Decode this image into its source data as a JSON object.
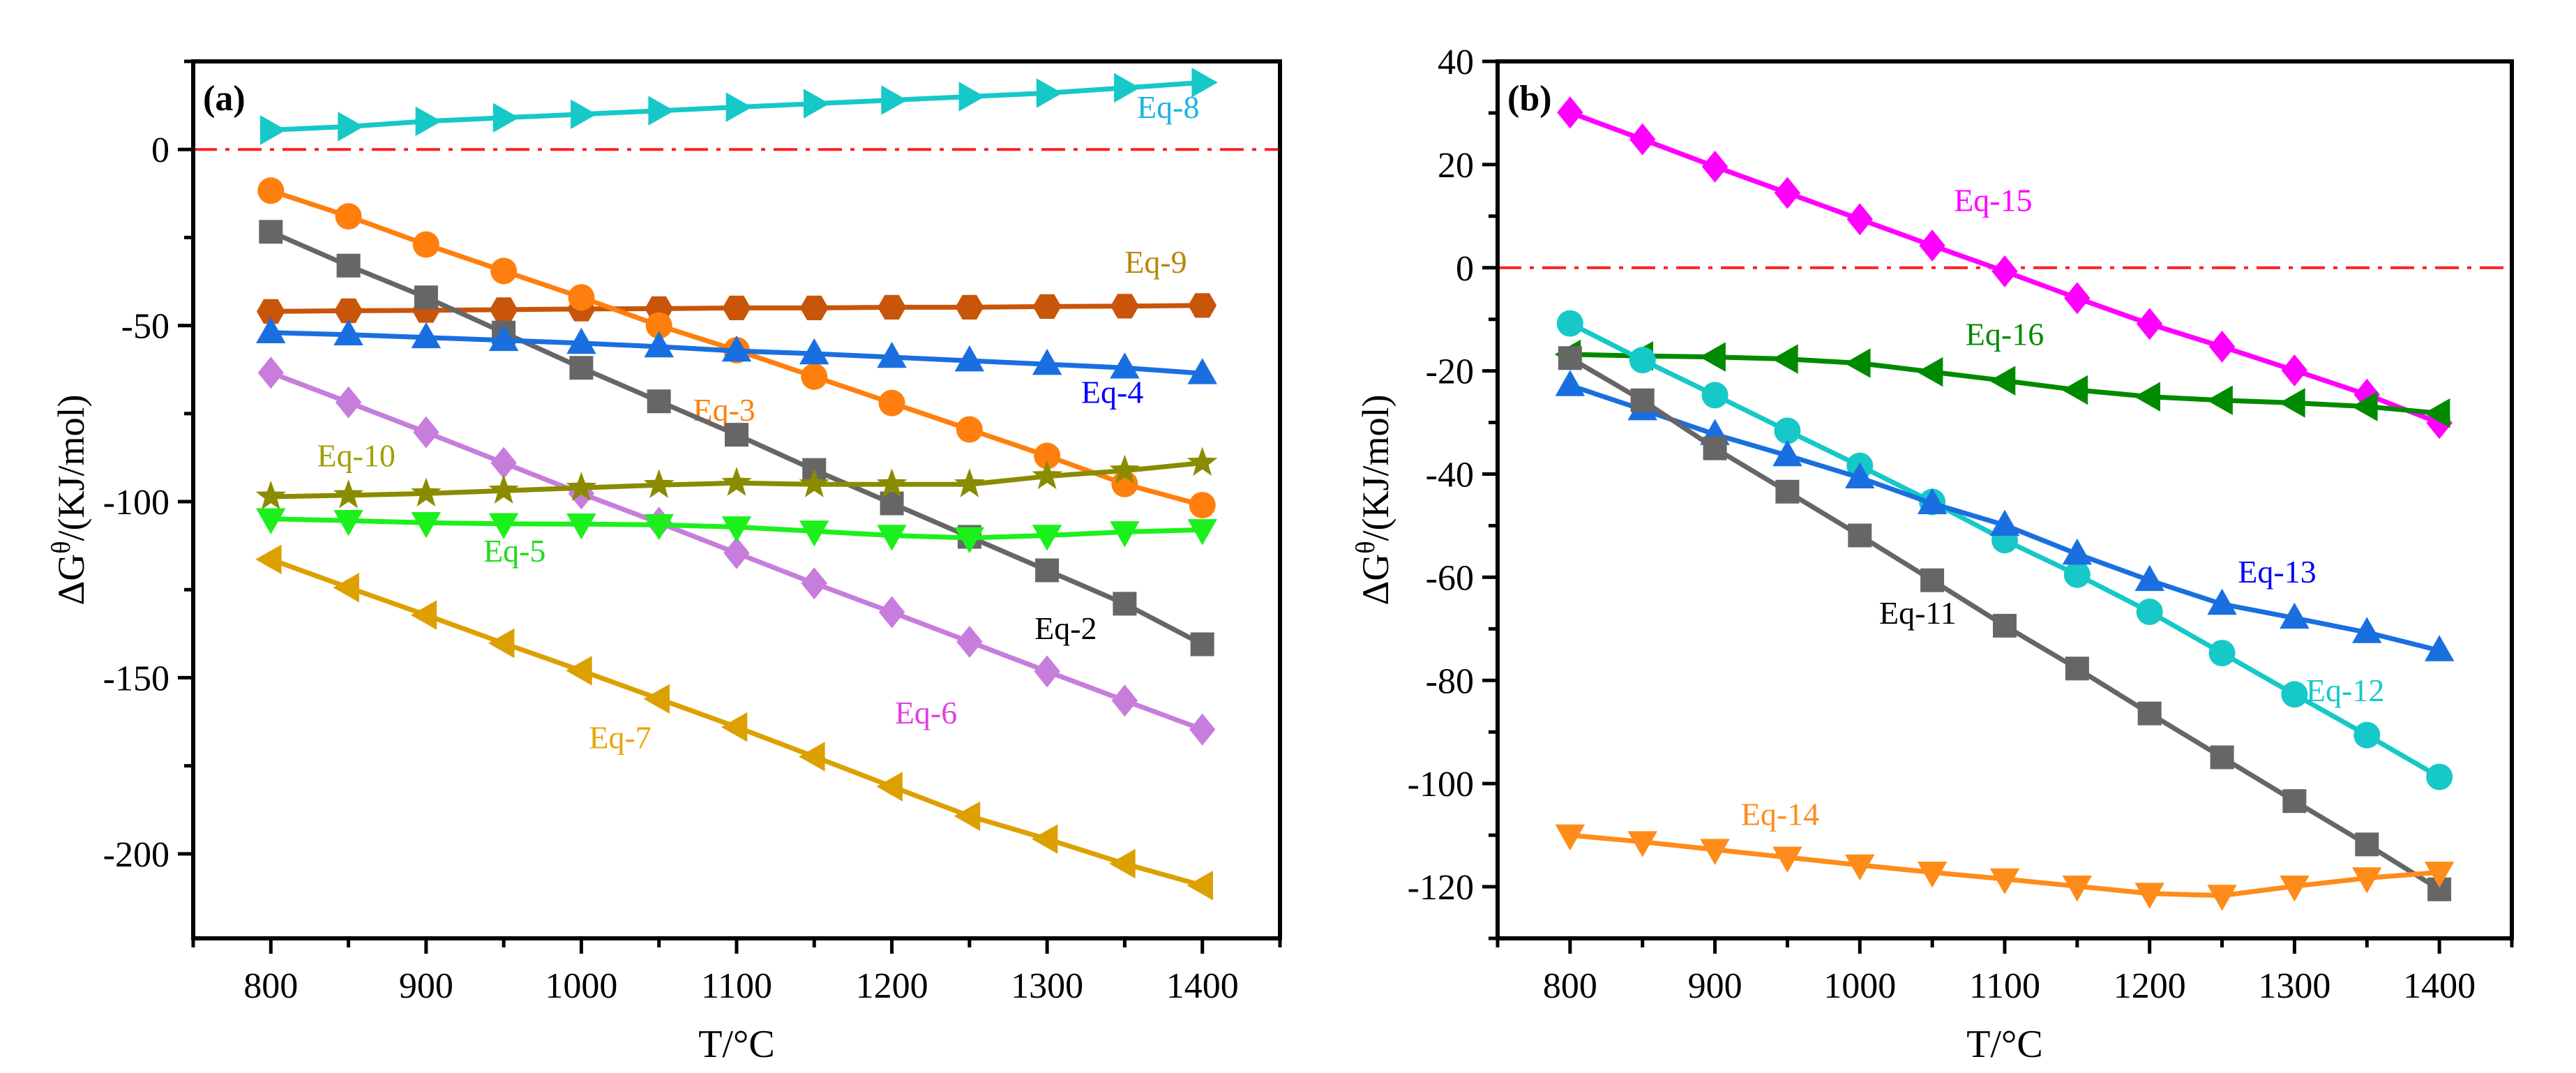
{
  "chart_data": [
    {
      "type": "line",
      "panel_label": "(a)",
      "xlabel": "T/°C",
      "ylabel_main": "ΔG",
      "ylabel_sup": "θ",
      "ylabel_rest": "/(KJ/mol)",
      "xlim": [
        750,
        1450
      ],
      "ylim": [
        -224,
        25
      ],
      "xticks": [
        800,
        900,
        1000,
        1100,
        1200,
        1300,
        1400
      ],
      "xtick_labels": [
        "800",
        "900",
        "1000",
        "1100",
        "1200",
        "1300",
        "1400"
      ],
      "x_minor_step": 50,
      "yticks": [
        0,
        -50,
        -100,
        -150,
        -200
      ],
      "ytick_labels": [
        "0",
        "-50",
        "-100",
        "-150",
        "-200"
      ],
      "y_minor_step": 25,
      "reference_line": {
        "y": 0,
        "color": "#ff2020",
        "style": "dash-dot"
      },
      "x": [
        800,
        850,
        900,
        950,
        1000,
        1050,
        1100,
        1150,
        1200,
        1250,
        1300,
        1350,
        1400
      ],
      "series": [
        {
          "name": "Eq-8",
          "color": "#16c8c8",
          "label_color": "#18b4e4",
          "marker": "triangle-right",
          "label_at": [
            1378,
            9
          ],
          "values": [
            5.5,
            6.5,
            8,
            9,
            10,
            11,
            12,
            13,
            14,
            15,
            16,
            17.5,
            19
          ]
        },
        {
          "name": "Eq-9",
          "color": "#c8550a",
          "label_color": "#b8860b",
          "marker": "hexagon",
          "label_at": [
            1370,
            -35
          ],
          "values": [
            -46,
            -45.8,
            -45.7,
            -45.5,
            -45.3,
            -45.2,
            -45,
            -45,
            -44.8,
            -44.8,
            -44.6,
            -44.5,
            -44.3
          ]
        },
        {
          "name": "Eq-3",
          "color": "#ff7f0e",
          "label_color": "#ff7f0e",
          "marker": "circle",
          "label_at": [
            1092,
            -77
          ],
          "values": [
            -11.7,
            -19,
            -27,
            -34.5,
            -42,
            -50,
            -57,
            -64.5,
            -72,
            -79.5,
            -87,
            -95,
            -101
          ]
        },
        {
          "name": "Eq-2",
          "color": "#666666",
          "label_color": "#000000",
          "marker": "square",
          "label_at": [
            1312,
            -139
          ],
          "values": [
            -23.4,
            -33,
            -42,
            -52,
            -62,
            -71.5,
            -81,
            -91,
            -100.5,
            -110,
            -119.5,
            -129,
            -140.5
          ]
        },
        {
          "name": "Eq-4",
          "color": "#1a6fe0",
          "label_color": "#0000ff",
          "marker": "triangle-up",
          "label_at": [
            1342,
            -72
          ],
          "values": [
            -52,
            -52.6,
            -53.4,
            -54.2,
            -55,
            -56,
            -57.2,
            -58,
            -59,
            -60,
            -61,
            -62,
            -63.6
          ]
        },
        {
          "name": "Eq-6",
          "color": "#c77ddc",
          "label_color": "#e040e0",
          "marker": "diamond",
          "label_at": [
            1222,
            -163
          ],
          "values": [
            -63.4,
            -71.8,
            -80.3,
            -89,
            -97.7,
            -106,
            -114.6,
            -123.2,
            -131.4,
            -139.8,
            -148.2,
            -156.5,
            -164.7
          ]
        },
        {
          "name": "Eq-10",
          "color": "#8b8b00",
          "label_color": "#a0a000",
          "marker": "star",
          "label_at": [
            855,
            -90
          ],
          "values": [
            -98.6,
            -98.2,
            -97.7,
            -96.9,
            -96.1,
            -95.3,
            -94.7,
            -95.1,
            -95.1,
            -95.1,
            -92.8,
            -91.2,
            -89
          ]
        },
        {
          "name": "Eq-5",
          "color": "#1cf01c",
          "label_color": "#1cdc1c",
          "marker": "triangle-down",
          "label_at": [
            957,
            -117
          ],
          "values": [
            -104.9,
            -105.4,
            -106,
            -106.3,
            -106.4,
            -106.6,
            -107.2,
            -108.4,
            -109.6,
            -110.3,
            -109.6,
            -108.6,
            -108
          ]
        },
        {
          "name": "Eq-7",
          "color": "#dca000",
          "label_color": "#e8a800",
          "marker": "triangle-left",
          "label_at": [
            1025,
            -170
          ],
          "values": [
            -116.4,
            -124.4,
            -132.2,
            -140.2,
            -148,
            -156,
            -164,
            -172.4,
            -180.9,
            -189.3,
            -195.8,
            -202.8,
            -209
          ]
        }
      ]
    },
    {
      "type": "line",
      "panel_label": "(b)",
      "xlabel": "T/°C",
      "ylabel_main": "ΔG",
      "ylabel_sup": "θ",
      "ylabel_rest": "/(KJ/mol)",
      "xlim": [
        750,
        1450
      ],
      "ylim": [
        -130,
        40
      ],
      "xticks": [
        800,
        900,
        1000,
        1100,
        1200,
        1300,
        1400
      ],
      "xtick_labels": [
        "800",
        "900",
        "1000",
        "1100",
        "1200",
        "1300",
        "1400"
      ],
      "x_minor_step": 50,
      "yticks": [
        40,
        20,
        0,
        -20,
        -40,
        -60,
        -80,
        -100,
        -120
      ],
      "ytick_labels": [
        "40",
        "20",
        "0",
        "-20",
        "-40",
        "-60",
        "-80",
        "-100",
        "-120"
      ],
      "y_minor_step": 10,
      "reference_line": {
        "y": 0,
        "color": "#ff2020",
        "style": "dash-dot"
      },
      "x": [
        800,
        850,
        900,
        950,
        1000,
        1050,
        1100,
        1150,
        1200,
        1250,
        1300,
        1350,
        1400
      ],
      "series": [
        {
          "name": "Eq-15",
          "color": "#ff00ff",
          "label_color": "#ff00ff",
          "marker": "diamond",
          "label_at": [
            1092,
            11
          ],
          "values": [
            30.1,
            24.9,
            19.6,
            14.5,
            9.4,
            4.3,
            -0.7,
            -5.9,
            -10.9,
            -15.3,
            -19.9,
            -24.6,
            -30.1
          ]
        },
        {
          "name": "Eq-16",
          "color": "#008a00",
          "label_color": "#008a00",
          "marker": "triangle-left",
          "label_at": [
            1100,
            -15
          ],
          "values": [
            -16.8,
            -17.1,
            -17.3,
            -17.7,
            -18.5,
            -20.2,
            -21.9,
            -23.7,
            -25,
            -25.7,
            -26.2,
            -26.9,
            -28.2
          ]
        },
        {
          "name": "Eq-12",
          "color": "#16c8c8",
          "label_color": "#16c8c8",
          "marker": "circle",
          "label_at": [
            1335,
            -84
          ],
          "values": [
            -10.8,
            -17.9,
            -24.7,
            -31.6,
            -38.4,
            -45.4,
            -52.8,
            -59.5,
            -66.7,
            -74.7,
            -82.7,
            -90.6,
            -98.7
          ]
        },
        {
          "name": "Eq-13",
          "color": "#1a6fe0",
          "label_color": "#0000ff",
          "marker": "triangle-up",
          "label_at": [
            1288,
            -61
          ],
          "values": [
            -22.8,
            -27.5,
            -32.3,
            -36.4,
            -40.7,
            -45.7,
            -49.9,
            -55.5,
            -60.6,
            -65.2,
            -67.9,
            -70.7,
            -74.2
          ]
        },
        {
          "name": "Eq-11",
          "color": "#666666",
          "label_color": "#000000",
          "marker": "square",
          "label_at": [
            1040,
            -69
          ],
          "values": [
            -17.5,
            -25.7,
            -35,
            -43.4,
            -51.9,
            -60.6,
            -69.4,
            -77.7,
            -86.4,
            -94.9,
            -103.4,
            -111.8,
            -120.5
          ]
        },
        {
          "name": "Eq-14",
          "color": "#ff8c1a",
          "label_color": "#ff8c1a",
          "marker": "triangle-down",
          "label_at": [
            945,
            -108
          ],
          "values": [
            -110,
            -111.3,
            -112.8,
            -114.3,
            -115.8,
            -117.2,
            -118.5,
            -119.9,
            -121.3,
            -121.7,
            -119.9,
            -118.3,
            -117.2
          ]
        }
      ]
    }
  ]
}
